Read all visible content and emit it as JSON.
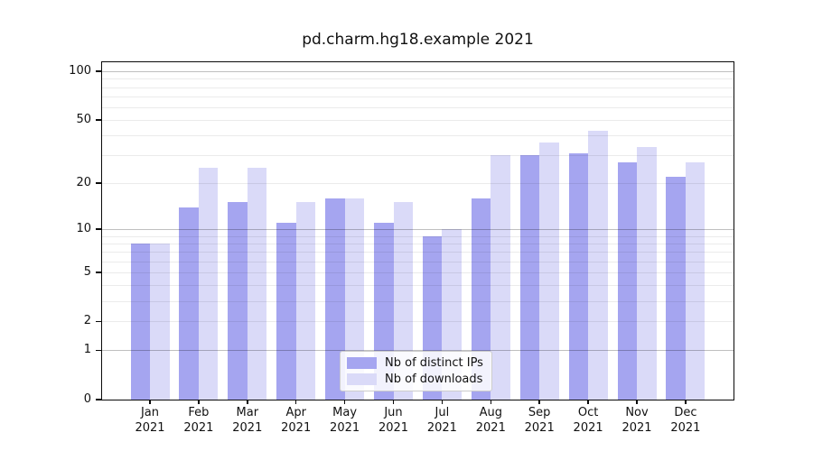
{
  "title": "pd.charm.hg18.example 2021",
  "colors": {
    "distinct_ips": "#a5a5f0",
    "downloads": "#dadaf8",
    "grid_minor": "rgba(0,0,0,0.08)",
    "grid_major": "rgba(0,0,0,0.25)",
    "axis": "#0a0a0a"
  },
  "legend": {
    "entries": [
      {
        "label": "Nb of distinct IPs",
        "color_key": "distinct_ips"
      },
      {
        "label": "Nb of downloads",
        "color_key": "downloads"
      }
    ]
  },
  "chart_data": {
    "type": "bar",
    "title": "pd.charm.hg18.example 2021",
    "categories": [
      "Jan 2021",
      "Feb 2021",
      "Mar 2021",
      "Apr 2021",
      "May 2021",
      "Jun 2021",
      "Jul 2021",
      "Aug 2021",
      "Sep 2021",
      "Oct 2021",
      "Nov 2021",
      "Dec 2021"
    ],
    "series": [
      {
        "name": "Nb of distinct IPs",
        "values": [
          8,
          14,
          15,
          11,
          16,
          11,
          9,
          16,
          30,
          31,
          27,
          22
        ]
      },
      {
        "name": "Nb of downloads",
        "values": [
          8,
          25,
          25,
          15,
          16,
          15,
          10,
          30,
          36,
          43,
          34,
          27
        ]
      }
    ],
    "xlabel": "",
    "ylabel": "",
    "yscale": "log1p",
    "ylim": [
      0,
      114
    ],
    "yticks": [
      0,
      1,
      2,
      5,
      10,
      20,
      50,
      100
    ],
    "major_gridlines": [
      1,
      10,
      100
    ],
    "minor_gridlines": [
      2,
      3,
      4,
      5,
      6,
      7,
      8,
      9,
      20,
      30,
      40,
      50,
      60,
      70,
      80,
      90
    ],
    "grid": true,
    "legend_position": "lower center"
  }
}
